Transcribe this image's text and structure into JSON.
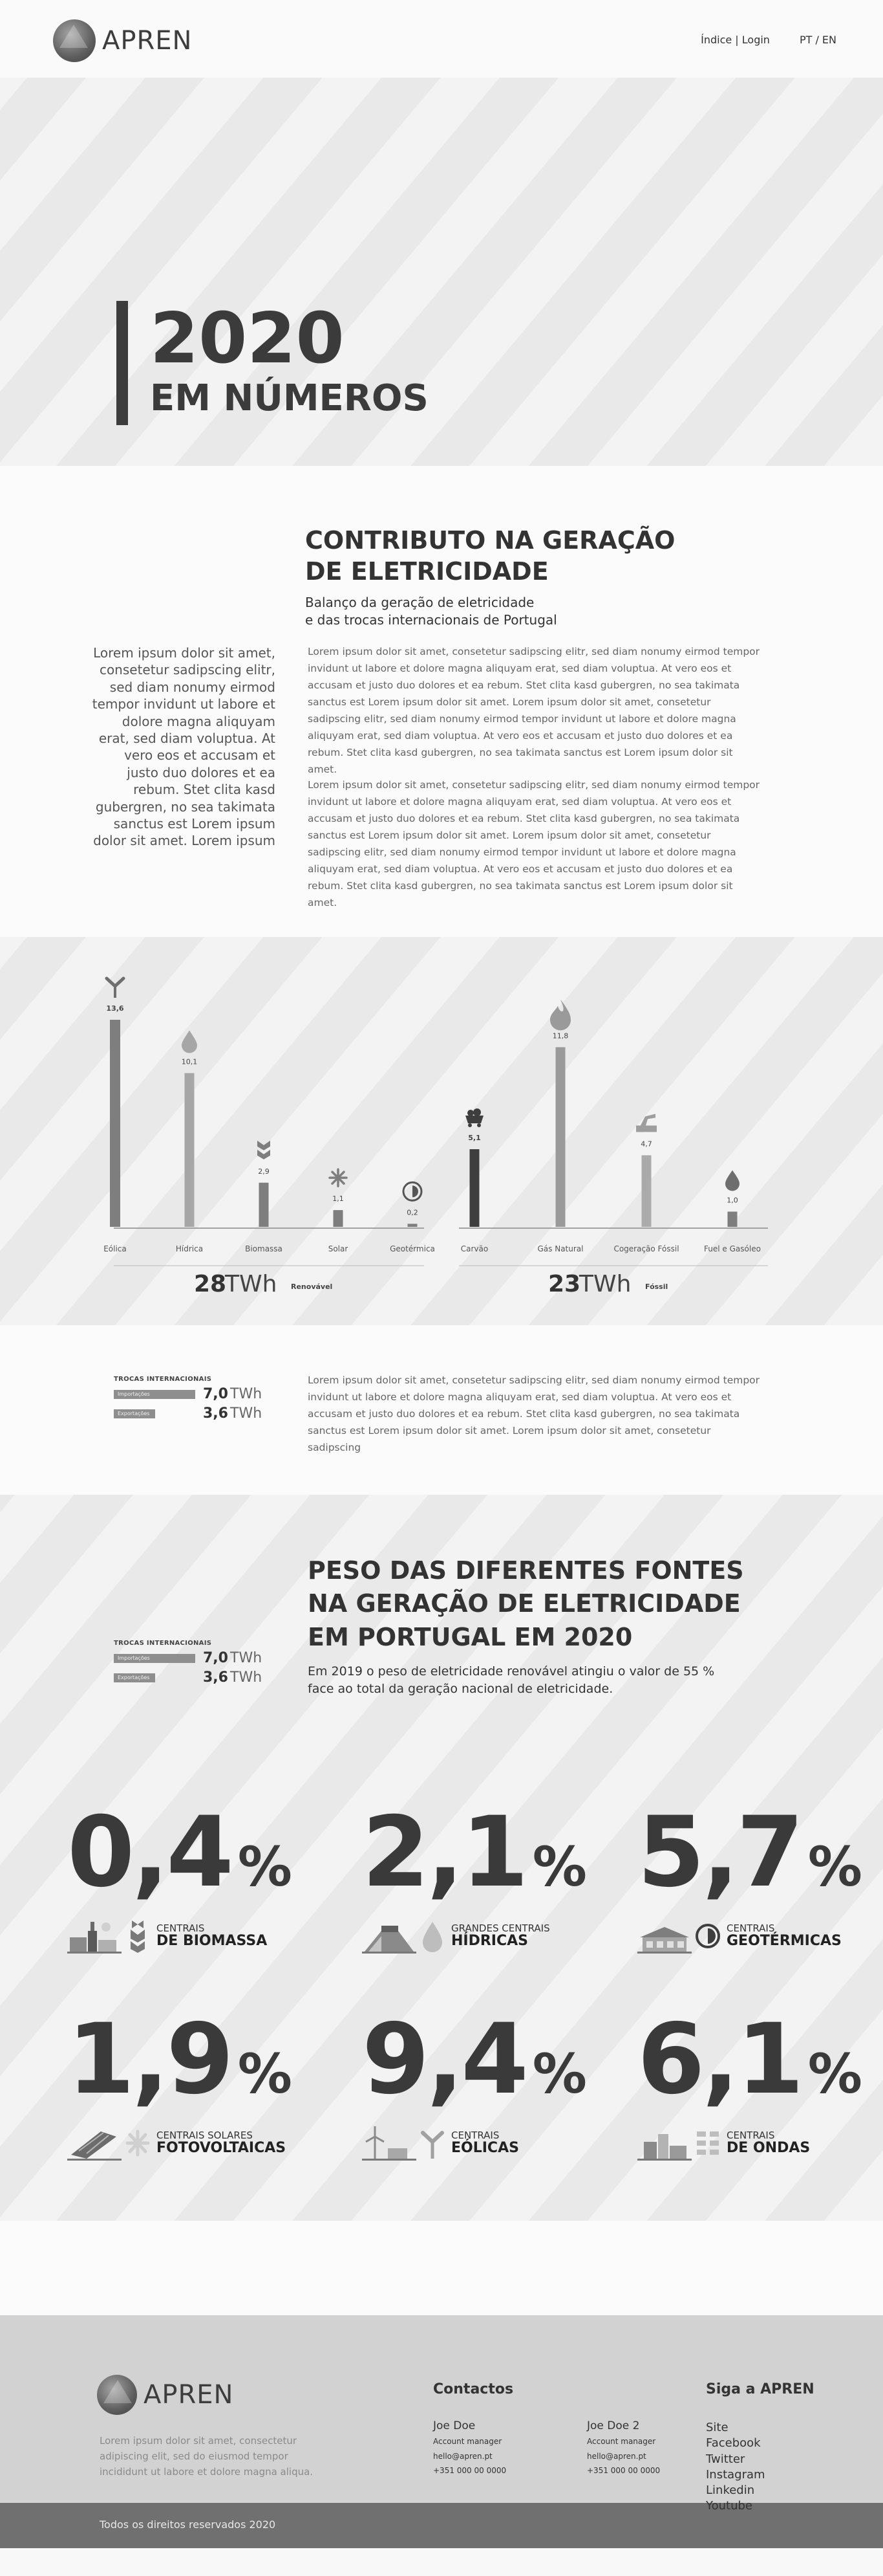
{
  "header": {
    "logo_text": "APREN",
    "nav": [
      "Índice | Login",
      "PT / EN"
    ]
  },
  "hero": {
    "year": "2020",
    "subtitle": "EM NÚMEROS"
  },
  "contrib": {
    "title_line1": "CONTRIBUTO NA GERAÇÃO",
    "title_line2": "DE ELETRICIDADE",
    "subtitle_line1": "Balanço da geração de eletricidade",
    "subtitle_line2": "e das trocas internacionais de Portugal",
    "left_text": "Lorem ipsum dolor sit amet, consetetur sadipscing elitr, sed diam nonumy eirmod tempor invidunt ut labore et dolore magna aliquyam erat, sed diam voluptua. At vero eos et accusam et justo duo dolores et ea rebum. Stet clita kasd gubergren, no sea takimata sanctus est Lorem ipsum dolor sit amet. Lorem ipsum",
    "paragraph1": "Lorem ipsum dolor sit amet, consetetur sadipscing elitr, sed diam nonumy eirmod tempor invidunt ut labore et dolore magna aliquyam erat, sed diam voluptua. At vero eos et accusam et justo duo dolores et ea rebum. Stet clita kasd gubergren, no sea takimata sanctus est Lorem ipsum dolor sit amet. Lorem ipsum dolor sit amet, consetetur sadipscing elitr, sed diam nonumy eirmod tempor invidunt ut labore et dolore magna aliquyam erat, sed diam voluptua. At vero eos et accusam et justo duo dolores et ea rebum. Stet clita kasd gubergren, no sea takimata sanctus est Lorem ipsum dolor sit amet.",
    "paragraph2": "Lorem ipsum dolor sit amet, consetetur sadipscing elitr, sed diam nonumy eirmod tempor invidunt ut labore et dolore magna aliquyam erat, sed diam voluptua. At vero eos et accusam et justo duo dolores et ea rebum. Stet clita kasd gubergren, no sea takimata sanctus est Lorem ipsum dolor sit amet. Lorem ipsum dolor sit amet, consetetur sadipscing elitr, sed diam nonumy eirmod tempor invidunt ut labore et dolore magna aliquyam erat, sed diam voluptua. At vero eos et accusam et justo duo dolores et ea rebum. Stet clita kasd gubergren, no sea takimata sanctus est Lorem ipsum dolor sit amet."
  },
  "chart_data": [
    {
      "type": "bar",
      "categories": [
        "Eólica",
        "Hídrica",
        "Biomassa",
        "Solar",
        "Geotérmica"
      ],
      "values": [
        13.6,
        10.1,
        2.9,
        1.1,
        0.2
      ],
      "value_labels": [
        "13,6",
        "10,1",
        "2,9",
        "1,1",
        "0,2"
      ],
      "icons": [
        "wind-turbine-icon",
        "water-drop-icon",
        "leaf-icon",
        "sun-icon",
        "geothermal-icon"
      ],
      "colors": [
        "#7e7e7e",
        "#a6a6a6",
        "#7e7e7e",
        "#7e7e7e",
        "#7e7e7e"
      ],
      "total_value": "28",
      "total_unit": "TWh",
      "total_label": "Renovável",
      "ylim": [
        0,
        13.6
      ]
    },
    {
      "type": "bar",
      "categories": [
        "Carvão",
        "Gás Natural",
        "Cogeração Fóssil",
        "Fuel e Gasóleo"
      ],
      "values": [
        5.1,
        11.8,
        4.7,
        1.0
      ],
      "value_labels": [
        "5,1",
        "11,8",
        "4,7",
        "1,0"
      ],
      "icons": [
        "coal-cart-icon",
        "flame-icon",
        "oil-pump-icon",
        "oil-drop-icon"
      ],
      "colors": [
        "#3e3e3e",
        "#9a9a9a",
        "#aaaaaa",
        "#7e7e7e"
      ],
      "total_value": "23",
      "total_unit": "TWh",
      "total_label": "Fóssil",
      "ylim": [
        0,
        13.6
      ]
    }
  ],
  "trocas": {
    "title": "TROCAS INTERNACIONAIS",
    "import_label": "Importações",
    "import_value": "7,0",
    "import_fraction": 1.0,
    "export_label": "Exportações",
    "export_value": "3,6",
    "export_fraction": 0.51,
    "unit": "TWh",
    "description": "Lorem ipsum dolor sit amet, consetetur sadipscing elitr, sed diam nonumy eirmod tempor invidunt ut labore et dolore magna aliquyam erat, sed diam voluptua. At vero eos et accusam et justo duo dolores et ea rebum. Stet clita kasd gubergren, no sea takimata sanctus est Lorem ipsum dolor sit amet. Lorem ipsum dolor sit amet, consetetur sadipscing"
  },
  "weights": {
    "title_line1": "PESO DAS DIFERENTES FONTES",
    "title_line2": "NA GERAÇÃO DE ELETRICIDADE",
    "title_line3": "EM PORTUGAL EM 2020",
    "subtitle_line1": "Em 2019 o peso de eletricidade renovável atingiu o valor de 55 %",
    "subtitle_line2": "face ao total da geração nacional de eletricidade.",
    "stats": [
      {
        "value": "0,4",
        "unit": "%",
        "small": "CENTRAIS",
        "big": "DE BIOMASSA",
        "icon": "leaf-icon"
      },
      {
        "value": "2,1",
        "unit": "%",
        "small": "GRANDES CENTRAIS",
        "big": "HÍDRICAS",
        "icon": "water-drop-icon"
      },
      {
        "value": "5,7",
        "unit": "%",
        "small": "CENTRAIS",
        "big": "GEOTÉRMICAS",
        "icon": "geothermal-icon"
      },
      {
        "value": "1,9",
        "unit": "%",
        "small": "CENTRAIS SOLARES",
        "big": "FOTOVOLTAICAS",
        "icon": "sun-icon"
      },
      {
        "value": "9,4",
        "unit": "%",
        "small": "CENTRAIS",
        "big": "EÓLICAS",
        "icon": "wind-turbine-icon"
      },
      {
        "value": "6,1",
        "unit": "%",
        "small": "CENTRAIS",
        "big": "DE ONDAS",
        "icon": "waves-icon"
      }
    ]
  },
  "footer": {
    "logo_text": "APREN",
    "description": "Lorem ipsum dolor sit amet, consectetur adipiscing elit, sed do eiusmod tempor incididunt ut labore et dolore magna aliqua.",
    "contacts_title": "Contactos",
    "contacts": [
      {
        "name": "Joe Doe",
        "role": "Account manager",
        "email": "hello@apren.pt",
        "phone": "+351 000 00 0000"
      },
      {
        "name": "Joe Doe 2",
        "role": "Account manager",
        "email": "hello@apren.pt",
        "phone": "+351 000 00 0000"
      }
    ],
    "social_title": "Siga a APREN",
    "social": [
      "Site",
      "Facebook",
      "Twitter",
      "Instagram",
      "Linkedin",
      "Youtube"
    ],
    "copyright": "Todos os direitos reservados 2020"
  }
}
